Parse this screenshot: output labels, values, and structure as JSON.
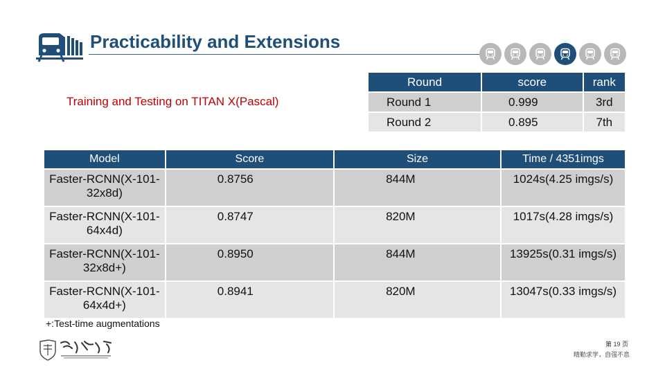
{
  "header": {
    "title": "Practicability and Extensions",
    "progress": {
      "total": 6,
      "active_index": 3,
      "icon": "train-icon"
    }
  },
  "subtitle": "Training and Testing on TITAN X(Pascal)",
  "round_table": {
    "headers": [
      "Round",
      "score",
      "rank"
    ],
    "rows": [
      [
        "Round 1",
        "0.999",
        "3rd"
      ],
      [
        "Round 2",
        "0.895",
        "7th"
      ]
    ]
  },
  "main_table": {
    "headers": [
      "Model",
      "Score",
      "Size",
      "Time / 4351imgs"
    ],
    "rows": [
      {
        "model": [
          "Faster-RCNN(X-101-",
          "32x8d)"
        ],
        "score": "0.8756",
        "size": "844M",
        "time": "1024s(4.25 imgs/s)"
      },
      {
        "model": [
          "Faster-RCNN(X-101-",
          "64x4d)"
        ],
        "score": "0.8747",
        "size": "820M",
        "time": "1017s(4.28 imgs/s)"
      },
      {
        "model": [
          "Faster-RCNN(X-101-",
          "32x8d+)"
        ],
        "score": "0.8950",
        "size": "844M",
        "time": "13925s(0.31 imgs/s)"
      },
      {
        "model": [
          "Faster-RCNN(X-101-",
          "64x4d+)"
        ],
        "score": "0.8941",
        "size": "820M",
        "time": "13047s(0.33 imgs/s)"
      }
    ]
  },
  "footnote": "+:Test-time augmentations",
  "footer": {
    "university_logo": "Southeast Jiaotong University",
    "page_number": "第 19 页",
    "motto": "精勤求学，自强不息"
  },
  "colors": {
    "header_blue": "#1f4e79",
    "accent_red": "#c00000",
    "row_dark": "#cfcfcf",
    "row_light": "#e5e5e5",
    "progress_inactive": "#b8b8b8"
  }
}
